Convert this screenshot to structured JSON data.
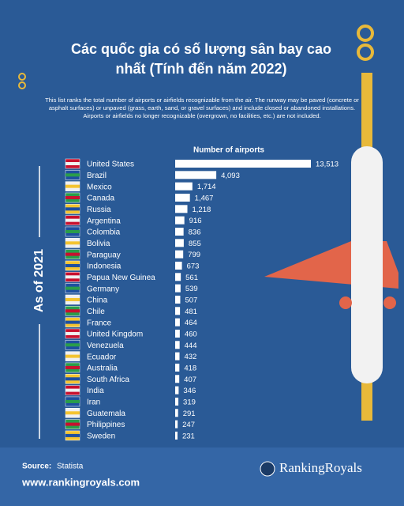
{
  "chart_data": {
    "type": "hbar",
    "title": "Các quốc gia có số lượng sân bay cao nhất (Tính đến năm 2022)",
    "subtitle": "This list ranks the total number of airports or airfields recognizable from the air. The runway may be paved (concrete or asphalt surfaces) or unpaved (grass, earth, sand, or gravel surfaces) and include closed or abandoned installations. Airports or airfields no longer recognizable (overgrown, no facilities, etc.) are not included.",
    "value_axis_label": "Number of airports",
    "annotation": "As of 2021",
    "color": "#ffffff",
    "categories": [
      "United States",
      "Brazil",
      "Mexico",
      "Canada",
      "Russia",
      "Argentina",
      "Colombia",
      "Bolivia",
      "Paraguay",
      "Indonesia",
      "Papua New Guinea",
      "Germany",
      "China",
      "Chile",
      "France",
      "United Kingdom",
      "Venezuela",
      "Ecuador",
      "Australia",
      "South Africa",
      "India",
      "Iran",
      "Guatemala",
      "Philippines",
      "Sweden"
    ],
    "values": [
      13513,
      4093,
      1714,
      1467,
      1218,
      916,
      836,
      855,
      799,
      673,
      561,
      539,
      507,
      481,
      464,
      460,
      444,
      432,
      418,
      407,
      346,
      319,
      291,
      247,
      231
    ],
    "value_labels": [
      "13,513",
      "4,093",
      "1,714",
      "1,467",
      "1,218",
      "916",
      "836",
      "855",
      "799",
      "673",
      "561",
      "539",
      "507",
      "481",
      "464",
      "460",
      "444",
      "432",
      "418",
      "407",
      "346",
      "319",
      "291",
      "247",
      "231"
    ]
  },
  "footer": {
    "source_label": "Source:",
    "source": "Statista",
    "url": "www.rankingroyals.com",
    "brand": "RankingRoyals"
  }
}
